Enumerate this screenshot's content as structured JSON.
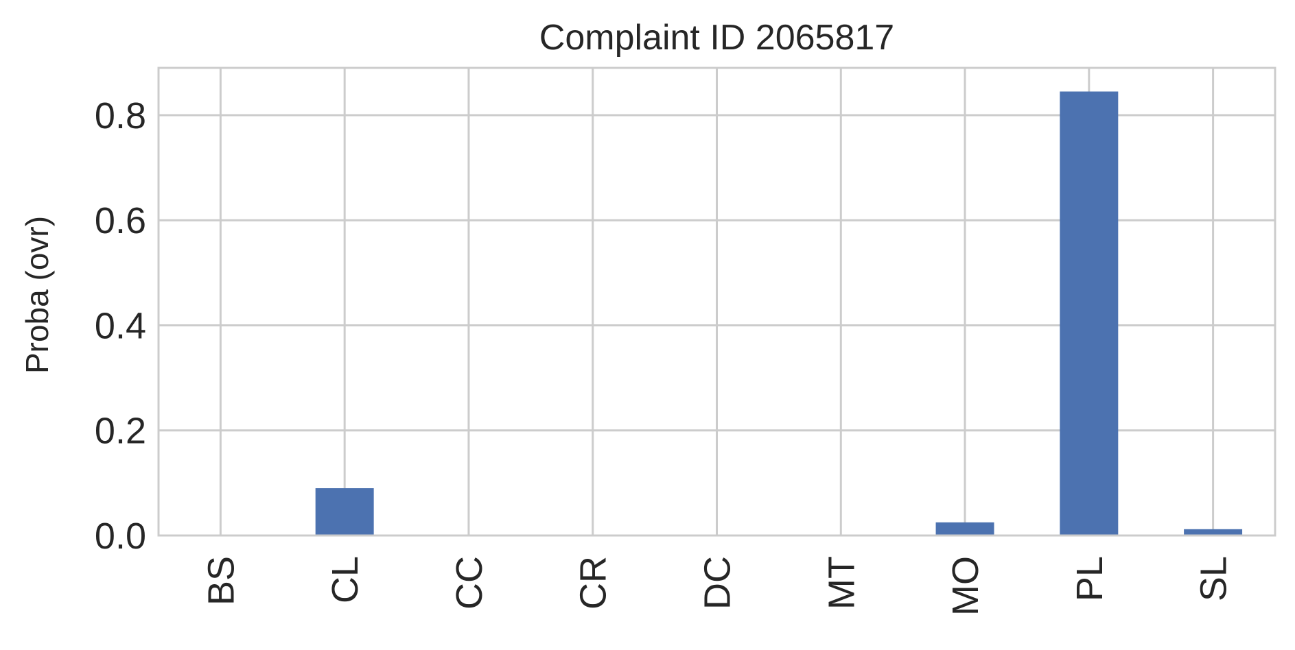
{
  "chart_data": {
    "type": "bar",
    "title": "Complaint ID 2065817",
    "xlabel": "",
    "ylabel": "Proba (ovr)",
    "categories": [
      "BS",
      "CL",
      "CC",
      "CR",
      "DC",
      "MT",
      "MO",
      "PL",
      "SL"
    ],
    "values": [
      0.0,
      0.09,
      0.0,
      0.0,
      0.0,
      0.0,
      0.025,
      0.845,
      0.012
    ],
    "yticks": [
      "0.0",
      "0.2",
      "0.4",
      "0.6",
      "0.8"
    ],
    "ylim": [
      0,
      0.89
    ],
    "grid": true,
    "bar_color": "#4c72b0"
  }
}
